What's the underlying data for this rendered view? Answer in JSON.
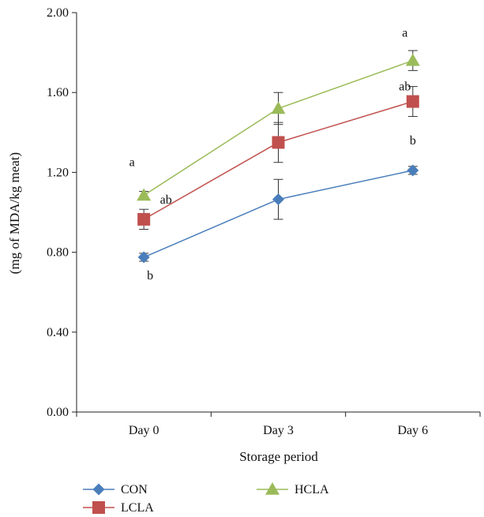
{
  "chart_data": {
    "type": "line",
    "categories": [
      "Day 0",
      "Day 3",
      "Day 6"
    ],
    "xlabel": "Storage period",
    "ylabel": "(mg of MDA/kg meat)",
    "ylim": [
      0,
      2.0
    ],
    "yticks": [
      "0.00",
      "0.40",
      "0.80",
      "1.20",
      "1.60",
      "2.00"
    ],
    "grid": false,
    "legend_position": "bottom",
    "series": [
      {
        "name": "CON",
        "color": "#4a7ebb",
        "marker": "diamond",
        "values": [
          0.775,
          1.065,
          1.21
        ],
        "errors": [
          0.02,
          0.1,
          0.02
        ],
        "labels": [
          "b",
          "",
          "b"
        ]
      },
      {
        "name": "LCLA",
        "color": "#c0504d",
        "marker": "square",
        "values": [
          0.965,
          1.35,
          1.555
        ],
        "errors": [
          0.05,
          0.1,
          0.075
        ],
        "labels": [
          "ab",
          "",
          "ab"
        ]
      },
      {
        "name": "HCLA",
        "color": "#9bbb59",
        "marker": "triangle",
        "values": [
          1.085,
          1.52,
          1.76
        ],
        "errors": [
          0.02,
          0.08,
          0.05
        ],
        "labels": [
          "a",
          "",
          "a"
        ]
      }
    ]
  }
}
